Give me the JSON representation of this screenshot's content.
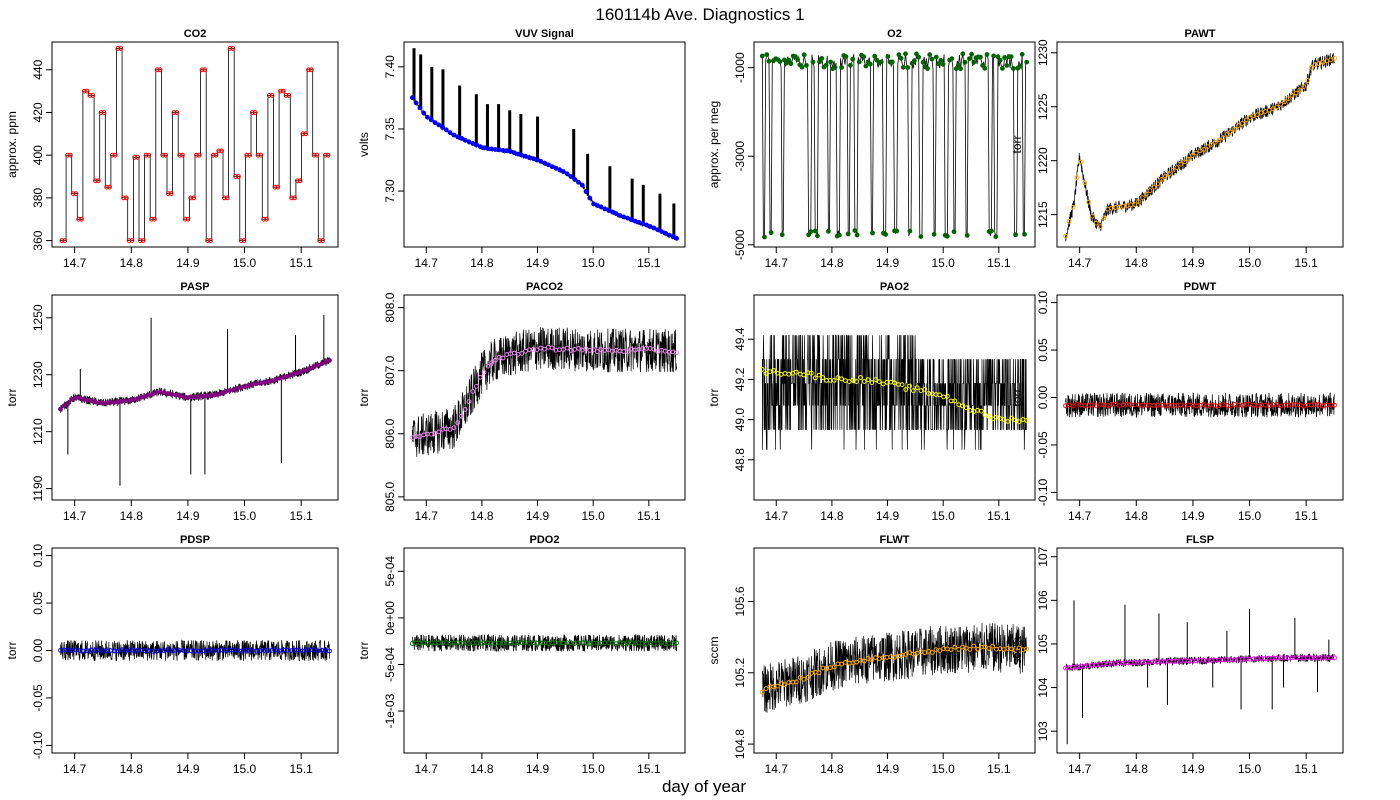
{
  "title": "160114b   Ave. Diagnostics 1",
  "xlabel": "day of year",
  "colors": {
    "CO2": "#ff0000",
    "VUV": "#0000cc",
    "O2": "#006400",
    "PAWT": "#ffa500",
    "PASP": "#6a0dad",
    "PACO2": "#ee82ee",
    "PAO2": "#ffff00",
    "PDWT": "#cc0000",
    "PDSP": "#0000ff",
    "PDO2": "#00cc00",
    "FLWT": "#ff7f00",
    "FLSP": "#cc00cc"
  },
  "chart_data": [
    {
      "name": "CO2",
      "type": "line",
      "title": "CO2",
      "ylabel": "approx. ppm",
      "xlim": [
        14.66,
        15.165
      ],
      "ylim": [
        357,
        453
      ],
      "yticks": [
        "360",
        "380",
        "400",
        "420",
        "440"
      ],
      "xticks": [
        "14.7",
        "14.8",
        "14.9",
        "15.0",
        "15.1"
      ],
      "levels": [
        360,
        400,
        382,
        370,
        430,
        428,
        388,
        420,
        385,
        400,
        450,
        380,
        360,
        399,
        360,
        400,
        370,
        440,
        400,
        382,
        420,
        400,
        370,
        380,
        400,
        440,
        360,
        400,
        402,
        380,
        450,
        390,
        360,
        400,
        420,
        400,
        370,
        428,
        385,
        430,
        428,
        380,
        388,
        410,
        440,
        400,
        360,
        400
      ],
      "avg_color": "red",
      "avg_style": "open-circle",
      "noise": "step"
    },
    {
      "name": "VUV Signal",
      "type": "line",
      "title": "VUV Signal",
      "ylabel": "volts",
      "xlim": [
        14.66,
        15.165
      ],
      "ylim": [
        7.255,
        7.42
      ],
      "yticks": [
        "7.30",
        "7.35",
        "7.40"
      ],
      "xticks": [
        "14.7",
        "14.8",
        "14.9",
        "15.0",
        "15.1"
      ],
      "trend": [
        [
          14.675,
          7.375
        ],
        [
          14.7,
          7.36
        ],
        [
          14.75,
          7.345
        ],
        [
          14.8,
          7.335
        ],
        [
          14.85,
          7.332
        ],
        [
          14.9,
          7.325
        ],
        [
          14.95,
          7.315
        ],
        [
          14.98,
          7.305
        ],
        [
          15.0,
          7.29
        ],
        [
          15.05,
          7.28
        ],
        [
          15.1,
          7.272
        ],
        [
          15.15,
          7.262
        ]
      ],
      "spikes": [
        [
          14.678,
          7.415
        ],
        [
          14.69,
          7.41
        ],
        [
          14.71,
          7.4
        ],
        [
          14.73,
          7.398
        ],
        [
          14.76,
          7.385
        ],
        [
          14.79,
          7.378
        ],
        [
          14.81,
          7.37
        ],
        [
          14.83,
          7.37
        ],
        [
          14.85,
          7.365
        ],
        [
          14.87,
          7.362
        ],
        [
          14.9,
          7.36
        ],
        [
          14.965,
          7.35
        ],
        [
          14.99,
          7.33
        ],
        [
          15.03,
          7.32
        ],
        [
          15.07,
          7.31
        ],
        [
          15.09,
          7.305
        ],
        [
          15.12,
          7.298
        ],
        [
          15.145,
          7.29
        ]
      ],
      "avg_color": "blue",
      "avg_style": "filled-dot",
      "noise": "vuv"
    },
    {
      "name": "O2",
      "type": "line",
      "title": "O2",
      "ylabel": "approx. per meg",
      "xlim": [
        14.66,
        15.165
      ],
      "ylim": [
        -5050,
        -420
      ],
      "yticks": [
        "-5000",
        "-3000",
        "-1000"
      ],
      "xticks": [
        "14.7",
        "14.8",
        "14.9",
        "15.0",
        "15.1"
      ],
      "high": -850,
      "low": -4750,
      "drops": [
        14.678,
        14.69,
        14.712,
        14.76,
        14.772,
        14.795,
        14.812,
        14.83,
        14.843,
        14.872,
        14.895,
        14.915,
        14.94,
        14.96,
        14.985,
        15.005,
        15.02,
        15.042,
        15.085,
        15.095,
        15.13,
        15.145
      ],
      "avg_color": "darkgreen",
      "avg_style": "filled-dot",
      "noise": "o2"
    },
    {
      "name": "PAWT",
      "type": "line",
      "title": "PAWT",
      "ylabel": "torr",
      "xlim": [
        14.66,
        15.165
      ],
      "ylim": [
        1212,
        1231
      ],
      "yticks": [
        "1215",
        "1220",
        "1225",
        "1230"
      ],
      "xticks": [
        "14.7",
        "14.8",
        "14.9",
        "15.0",
        "15.1"
      ],
      "trend": [
        [
          14.675,
          1213
        ],
        [
          14.69,
          1216
        ],
        [
          14.7,
          1220.5
        ],
        [
          14.705,
          1219
        ],
        [
          14.72,
          1215
        ],
        [
          14.735,
          1213.8
        ],
        [
          14.75,
          1215.5
        ],
        [
          14.8,
          1216
        ],
        [
          14.85,
          1218.5
        ],
        [
          14.9,
          1220.5
        ],
        [
          14.95,
          1222
        ],
        [
          15.0,
          1224
        ],
        [
          15.05,
          1225
        ],
        [
          15.1,
          1227
        ],
        [
          15.11,
          1228.8
        ],
        [
          15.15,
          1229.5
        ]
      ],
      "avg_color": "orange",
      "avg_style": "open-circle",
      "noise": 0.6
    },
    {
      "name": "PASP",
      "type": "line",
      "title": "PASP",
      "ylabel": "torr",
      "xlim": [
        14.66,
        15.165
      ],
      "ylim": [
        1186,
        1258
      ],
      "yticks": [
        "1190",
        "1210",
        "1230",
        "1250"
      ],
      "xticks": [
        "14.7",
        "14.8",
        "14.9",
        "15.0",
        "15.1"
      ],
      "trend": [
        [
          14.675,
          1218
        ],
        [
          14.7,
          1222
        ],
        [
          14.75,
          1220
        ],
        [
          14.8,
          1221
        ],
        [
          14.85,
          1224
        ],
        [
          14.9,
          1222
        ],
        [
          14.95,
          1223
        ],
        [
          15.0,
          1226
        ],
        [
          15.05,
          1228
        ],
        [
          15.1,
          1231
        ],
        [
          15.15,
          1235
        ]
      ],
      "spikes": [
        [
          14.688,
          1202
        ],
        [
          14.71,
          1232
        ],
        [
          14.78,
          1191
        ],
        [
          14.835,
          1250
        ],
        [
          14.905,
          1195
        ],
        [
          14.93,
          1195
        ],
        [
          14.97,
          1246
        ],
        [
          15.065,
          1199
        ],
        [
          15.09,
          1244
        ],
        [
          15.14,
          1251
        ]
      ],
      "avg_color": "purple",
      "avg_style": "filled-dot",
      "noise": "pasp"
    },
    {
      "name": "PACO2",
      "type": "line",
      "title": "PACO2",
      "ylabel": "torr",
      "xlim": [
        14.66,
        15.165
      ],
      "ylim": [
        804.95,
        808.2
      ],
      "yticks": [
        "805.0",
        "806.0",
        "807.0",
        "808.0"
      ],
      "xticks": [
        "14.7",
        "14.8",
        "14.9",
        "15.0",
        "15.1"
      ],
      "trend": [
        [
          14.675,
          805.95
        ],
        [
          14.7,
          805.98
        ],
        [
          14.75,
          806.1
        ],
        [
          14.77,
          806.4
        ],
        [
          14.8,
          806.95
        ],
        [
          14.82,
          807.15
        ],
        [
          14.85,
          807.25
        ],
        [
          14.9,
          807.35
        ],
        [
          14.95,
          807.35
        ],
        [
          15.0,
          807.32
        ],
        [
          15.05,
          807.32
        ],
        [
          15.1,
          807.33
        ],
        [
          15.15,
          807.3
        ]
      ],
      "avg_color": "violet",
      "avg_style": "open-circle",
      "noise": "paco2"
    },
    {
      "name": "PAO2",
      "type": "line",
      "title": "PAO2",
      "ylabel": "torr",
      "xlim": [
        14.66,
        15.165
      ],
      "ylim": [
        48.6,
        49.62
      ],
      "yticks": [
        "48.8",
        "49.0",
        "49.2",
        "49.4"
      ],
      "xticks": [
        "14.7",
        "14.8",
        "14.9",
        "15.0",
        "15.1"
      ],
      "trend": [
        [
          14.675,
          49.24
        ],
        [
          14.75,
          49.23
        ],
        [
          14.8,
          49.2
        ],
        [
          14.85,
          49.2
        ],
        [
          14.9,
          49.18
        ],
        [
          14.95,
          49.15
        ],
        [
          15.0,
          49.12
        ],
        [
          15.05,
          49.05
        ],
        [
          15.1,
          49.0
        ],
        [
          15.15,
          49.0
        ]
      ],
      "avg_color": "yellow",
      "avg_style": "open-circle",
      "noise": "pao2"
    },
    {
      "name": "PDWT",
      "type": "line",
      "title": "PDWT",
      "ylabel": "torr",
      "xlim": [
        14.66,
        15.165
      ],
      "ylim": [
        -0.108,
        0.108
      ],
      "yticks": [
        "-0.10",
        "-0.05",
        "0.00",
        "0.05",
        "0.10"
      ],
      "xticks": [
        "14.7",
        "14.8",
        "14.9",
        "15.0",
        "15.1"
      ],
      "trend": [
        [
          14.675,
          -0.008
        ],
        [
          15.15,
          -0.008
        ]
      ],
      "avg_color": "red",
      "avg_style": "open-circle",
      "noise": 0.013
    },
    {
      "name": "PDSP",
      "type": "line",
      "title": "PDSP",
      "ylabel": "torr",
      "xlim": [
        14.66,
        15.165
      ],
      "ylim": [
        -0.108,
        0.108
      ],
      "yticks": [
        "-0.10",
        "-0.05",
        "0.00",
        "0.05",
        "0.10"
      ],
      "xticks": [
        "14.7",
        "14.8",
        "14.9",
        "15.0",
        "15.1"
      ],
      "trend": [
        [
          14.675,
          0.0
        ],
        [
          15.15,
          0.0
        ]
      ],
      "avg_color": "blue",
      "avg_style": "open-circle",
      "noise": 0.011
    },
    {
      "name": "PDO2",
      "type": "line",
      "title": "PDO2",
      "ylabel": "torr",
      "xlim": [
        14.66,
        15.165
      ],
      "ylim": [
        -0.00145,
        0.00075
      ],
      "yticks": [
        "-1e-03",
        "-5e-04",
        "0e+00",
        "5e-04"
      ],
      "xticks": [
        "14.7",
        "14.8",
        "14.9",
        "15.0",
        "15.1"
      ],
      "trend": [
        [
          14.675,
          -0.00027
        ],
        [
          15.15,
          -0.00027
        ]
      ],
      "avg_color": "green",
      "avg_style": "open-circle",
      "noise": 9e-05
    },
    {
      "name": "FLWT",
      "type": "line",
      "title": "FLWT",
      "ylabel": "sccm",
      "xlim": [
        14.66,
        15.165
      ],
      "ylim": [
        104.75,
        105.9
      ],
      "yticks": [
        "104.8",
        "105.2",
        "105.6"
      ],
      "xticks": [
        "14.7",
        "14.8",
        "14.9",
        "15.0",
        "15.1"
      ],
      "trend": [
        [
          14.675,
          105.1
        ],
        [
          14.7,
          105.13
        ],
        [
          14.75,
          105.17
        ],
        [
          14.8,
          105.24
        ],
        [
          14.85,
          105.27
        ],
        [
          14.9,
          105.29
        ],
        [
          14.95,
          105.31
        ],
        [
          15.0,
          105.33
        ],
        [
          15.05,
          105.34
        ],
        [
          15.1,
          105.34
        ],
        [
          15.15,
          105.33
        ]
      ],
      "avg_color": "orange",
      "avg_style": "open-circle",
      "noise": 0.14
    },
    {
      "name": "FLSP",
      "type": "line",
      "title": "FLSP",
      "ylabel": "sccm",
      "xlim": [
        14.66,
        15.165
      ],
      "ylim": [
        102.5,
        107.2
      ],
      "yticks": [
        "103",
        "104",
        "105",
        "106",
        "107"
      ],
      "xticks": [
        "14.7",
        "14.8",
        "14.9",
        "15.0",
        "15.1"
      ],
      "trend": [
        [
          14.675,
          104.45
        ],
        [
          14.75,
          104.55
        ],
        [
          14.85,
          104.6
        ],
        [
          14.95,
          104.63
        ],
        [
          15.05,
          104.68
        ],
        [
          15.15,
          104.68
        ]
      ],
      "spikes": [
        [
          14.678,
          102.7
        ],
        [
          14.69,
          106.0
        ],
        [
          14.705,
          103.3
        ],
        [
          14.78,
          105.9
        ],
        [
          14.82,
          104.0
        ],
        [
          14.84,
          105.7
        ],
        [
          14.855,
          103.6
        ],
        [
          14.89,
          105.5
        ],
        [
          14.935,
          104.0
        ],
        [
          14.96,
          105.3
        ],
        [
          14.985,
          103.5
        ],
        [
          15.0,
          105.8
        ],
        [
          15.04,
          103.5
        ],
        [
          15.06,
          104.0
        ],
        [
          15.08,
          105.6
        ],
        [
          15.12,
          103.9
        ],
        [
          15.14,
          105.1
        ]
      ],
      "avg_color": "magenta",
      "avg_style": "open-circle",
      "noise": 0.09
    }
  ]
}
